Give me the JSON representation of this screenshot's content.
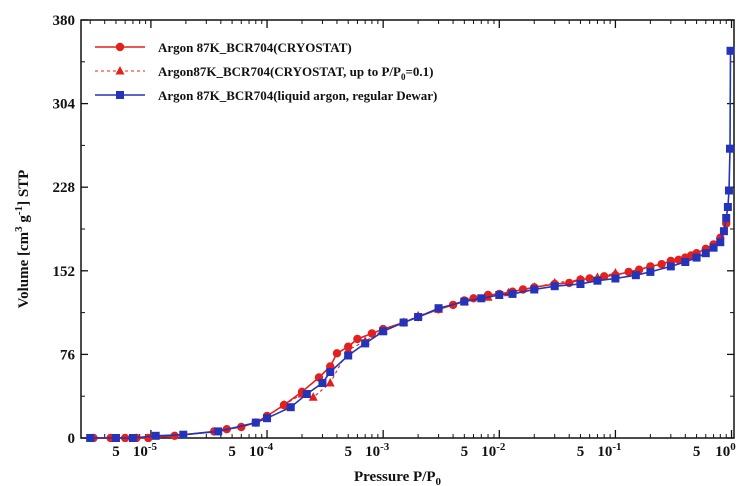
{
  "chart_data": {
    "type": "line",
    "title": "",
    "xlabel": "Pressure P/P",
    "xlabel_sub": "0",
    "ylabel_parts": [
      "Volume [cm",
      "3",
      " g",
      "-1",
      "] STP"
    ],
    "xscale": "log",
    "xlim": [
      2.5e-06,
      1.05
    ],
    "ylim": [
      0,
      380
    ],
    "yticks": [
      0,
      76,
      152,
      228,
      304,
      380
    ],
    "ytick_labels": [
      "0",
      "76",
      "152",
      "228",
      "304",
      "380"
    ],
    "xticks_major": [
      {
        "value": 1e-05,
        "base": "10",
        "exp": "-5"
      },
      {
        "value": 0.0001,
        "base": "10",
        "exp": "-4"
      },
      {
        "value": 0.001,
        "base": "10",
        "exp": "-3"
      },
      {
        "value": 0.01,
        "base": "10",
        "exp": "-2"
      },
      {
        "value": 0.1,
        "base": "10",
        "exp": "-1"
      },
      {
        "value": 1,
        "base": "10",
        "exp": "0"
      }
    ],
    "xticks_minor_labeled": [
      {
        "value": 5e-06,
        "label": "5"
      },
      {
        "value": 5e-05,
        "label": "5"
      },
      {
        "value": 0.0005,
        "label": "5"
      },
      {
        "value": 0.005,
        "label": "5"
      },
      {
        "value": 0.05,
        "label": "5"
      },
      {
        "value": 0.5,
        "label": "5"
      }
    ],
    "grid": false,
    "legend_position": "top-left",
    "series": [
      {
        "name": "Argon 87K_BCR704(CRYOSTAT)",
        "color": "#e3201b",
        "marker": "circle",
        "line": "solid",
        "x": [
          3.2e-06,
          4.5e-06,
          6e-06,
          7.5e-06,
          9.5e-06,
          1.6e-05,
          3.5e-05,
          4.5e-05,
          6e-05,
          8e-05,
          0.0001,
          0.00014,
          0.0002,
          0.00028,
          0.00035,
          0.0004,
          0.0005,
          0.0006,
          0.0008,
          0.001,
          0.0015,
          0.002,
          0.003,
          0.004,
          0.005,
          0.006,
          0.008,
          0.01,
          0.013,
          0.016,
          0.02,
          0.03,
          0.04,
          0.05,
          0.06,
          0.08,
          0.1,
          0.13,
          0.16,
          0.2,
          0.25,
          0.3,
          0.35,
          0.4,
          0.45,
          0.5,
          0.6,
          0.7,
          0.8,
          0.9
        ],
        "y": [
          0,
          0,
          0,
          0,
          0,
          2,
          6,
          8,
          10,
          14,
          20,
          30,
          42,
          55,
          65,
          77,
          83,
          90,
          95,
          99,
          105,
          110,
          117,
          121,
          125,
          127,
          130,
          131,
          133,
          135,
          137,
          140,
          141,
          144,
          145,
          147,
          148,
          151,
          153,
          156,
          158,
          161,
          162,
          164,
          166,
          168,
          172,
          176,
          182,
          195
        ]
      },
      {
        "name": "Argon87K_BCR704(CRYOSTAT, up to P/P0=0.1)",
        "legend_parts": [
          "Argon87K_BCR704(CRYOSTAT, up to P/P",
          "0",
          "=0.1)"
        ],
        "color": "#e3201b",
        "marker": "triangle",
        "line": "dotted",
        "x": [
          0.00014,
          0.0002,
          0.00025,
          0.00035,
          0.0005,
          0.0007,
          0.001,
          0.0015,
          0.002,
          0.003,
          0.005,
          0.008,
          0.012,
          0.02,
          0.03,
          0.05,
          0.07,
          0.1
        ],
        "y": [
          30,
          40,
          37,
          50,
          80,
          88,
          98,
          105,
          111,
          117,
          124,
          128,
          132,
          137,
          141,
          144,
          146,
          150
        ]
      },
      {
        "name": "Argon 87K_BCR704(liquid argon, regular Dewar)",
        "color": "#2433b8",
        "marker": "square",
        "line": "solid",
        "x": [
          3e-06,
          5e-06,
          7e-06,
          1.1e-05,
          1.9e-05,
          3.8e-05,
          8e-05,
          0.0001,
          0.00016,
          0.00022,
          0.0003,
          0.00035,
          0.0005,
          0.0007,
          0.001,
          0.0015,
          0.002,
          0.003,
          0.005,
          0.007,
          0.01,
          0.013,
          0.02,
          0.03,
          0.05,
          0.07,
          0.1,
          0.15,
          0.2,
          0.3,
          0.4,
          0.5,
          0.6,
          0.7,
          0.8,
          0.86,
          0.9,
          0.93,
          0.95,
          0.97,
          0.98
        ],
        "y": [
          0,
          0,
          0,
          2,
          3,
          6,
          14,
          18,
          28,
          40,
          50,
          60,
          75,
          86,
          97,
          105,
          110,
          118,
          124,
          127,
          130,
          131,
          135,
          138,
          140,
          143,
          145,
          148,
          151,
          156,
          160,
          164,
          168,
          173,
          178,
          188,
          200,
          210,
          225,
          263,
          352
        ]
      }
    ]
  }
}
